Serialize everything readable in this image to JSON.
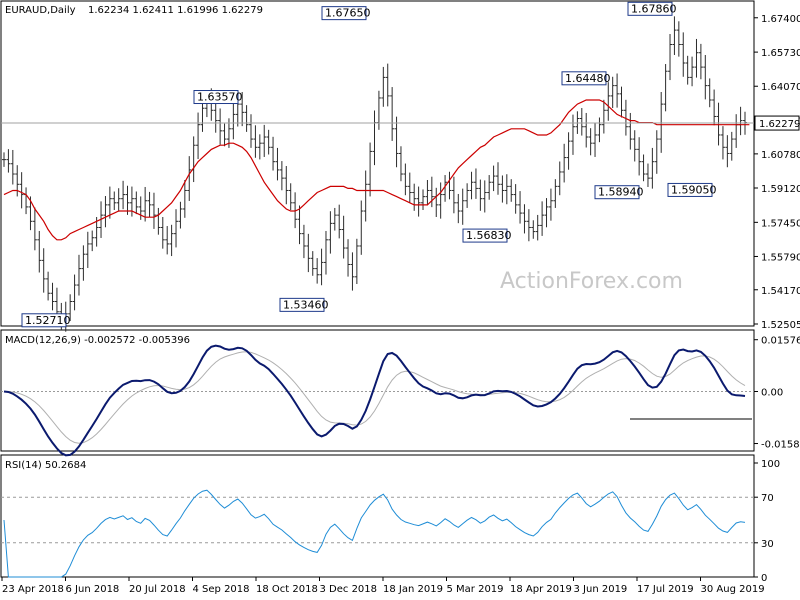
{
  "header": {
    "symbol": "EURAUD,Daily",
    "ohlc": "1.62234 1.62411 1.61996 1.62279"
  },
  "watermark": "ActionForex.com",
  "chart_data": [
    {
      "type": "bar",
      "panel": "price",
      "y_ticks": [
        "1.67400",
        "1.65730",
        "1.64070",
        "1.62400",
        "1.60780",
        "1.59120",
        "1.57450",
        "1.55790",
        "1.54170",
        "1.52505"
      ],
      "ylim": [
        1.52505,
        1.6807
      ],
      "current_price": "1.62279",
      "annotations": [
        {
          "text": "1.52710",
          "value": 1.5271,
          "box_below": true
        },
        {
          "text": "1.63570",
          "value": 1.6357,
          "box_below": false
        },
        {
          "text": "1.53460",
          "value": 1.5346,
          "box_below": true
        },
        {
          "text": "1.67650",
          "value": 1.6765,
          "box_below": false
        },
        {
          "text": "1.56830",
          "value": 1.5683,
          "box_below": true
        },
        {
          "text": "1.64480",
          "value": 1.6448,
          "box_below": false
        },
        {
          "text": "1.58940",
          "value": 1.5894,
          "box_below": true
        },
        {
          "text": "1.67860",
          "value": 1.6786,
          "box_below": false
        },
        {
          "text": "1.59050",
          "value": 1.5905,
          "box_below": true
        }
      ],
      "closes": [
        1.605,
        1.603,
        1.598,
        1.593,
        1.588,
        1.582,
        1.575,
        1.566,
        1.556,
        1.547,
        1.54,
        1.536,
        1.531,
        1.528,
        1.53,
        1.536,
        1.544,
        1.552,
        1.559,
        1.564,
        1.567,
        1.572,
        1.578,
        1.583,
        1.586,
        1.584,
        1.586,
        1.588,
        1.584,
        1.586,
        1.582,
        1.58,
        1.585,
        1.583,
        1.578,
        1.572,
        1.566,
        1.564,
        1.569,
        1.575,
        1.581,
        1.59,
        1.6,
        1.612,
        1.622,
        1.63,
        1.633,
        1.629,
        1.624,
        1.619,
        1.615,
        1.62,
        1.627,
        1.632,
        1.628,
        1.622,
        1.615,
        1.611,
        1.613,
        1.616,
        1.611,
        1.604,
        1.6,
        1.596,
        1.59,
        1.584,
        1.576,
        1.569,
        1.563,
        1.557,
        1.552,
        1.549,
        1.555,
        1.566,
        1.574,
        1.578,
        1.571,
        1.562,
        1.554,
        1.548,
        1.563,
        1.58,
        1.593,
        1.609,
        1.623,
        1.635,
        1.645,
        1.636,
        1.62,
        1.608,
        1.598,
        1.592,
        1.589,
        1.586,
        1.584,
        1.587,
        1.59,
        1.587,
        1.583,
        1.588,
        1.594,
        1.59,
        1.584,
        1.58,
        1.585,
        1.59,
        1.594,
        1.591,
        1.586,
        1.589,
        1.594,
        1.597,
        1.593,
        1.59,
        1.592,
        1.588,
        1.583,
        1.579,
        1.575,
        1.572,
        1.57,
        1.573,
        1.578,
        1.582,
        1.585,
        1.592,
        1.599,
        1.606,
        1.614,
        1.621,
        1.625,
        1.621,
        1.616,
        1.613,
        1.617,
        1.622,
        1.629,
        1.636,
        1.641,
        1.637,
        1.629,
        1.621,
        1.615,
        1.61,
        1.604,
        1.598,
        1.596,
        1.604,
        1.615,
        1.632,
        1.648,
        1.661,
        1.668,
        1.661,
        1.652,
        1.645,
        1.65,
        1.657,
        1.65,
        1.641,
        1.634,
        1.626,
        1.617,
        1.611,
        1.608,
        1.615,
        1.622,
        1.624,
        1.623
      ],
      "ma": [
        1.588,
        1.589,
        1.59,
        1.59,
        1.589,
        1.588,
        1.585,
        1.581,
        1.578,
        1.575,
        1.571,
        1.568,
        1.566,
        1.566,
        1.567,
        1.569,
        1.57,
        1.571,
        1.572,
        1.573,
        1.574,
        1.575,
        1.576,
        1.577,
        1.578,
        1.579,
        1.58,
        1.58,
        1.58,
        1.58,
        1.579,
        1.578,
        1.577,
        1.577,
        1.577,
        1.578,
        1.58,
        1.582,
        1.584,
        1.587,
        1.59,
        1.594,
        1.598,
        1.601,
        1.604,
        1.606,
        1.608,
        1.61,
        1.611,
        1.612,
        1.612,
        1.613,
        1.613,
        1.612,
        1.611,
        1.609,
        1.606,
        1.602,
        1.598,
        1.594,
        1.591,
        1.588,
        1.585,
        1.583,
        1.581,
        1.58,
        1.58,
        1.581,
        1.583,
        1.585,
        1.587,
        1.589,
        1.59,
        1.591,
        1.592,
        1.592,
        1.592,
        1.592,
        1.591,
        1.591,
        1.59,
        1.59,
        1.59,
        1.59,
        1.59,
        1.59,
        1.59,
        1.589,
        1.588,
        1.587,
        1.586,
        1.585,
        1.584,
        1.583,
        1.583,
        1.583,
        1.583,
        1.585,
        1.587,
        1.589,
        1.592,
        1.595,
        1.598,
        1.601,
        1.603,
        1.605,
        1.607,
        1.609,
        1.611,
        1.612,
        1.614,
        1.616,
        1.617,
        1.618,
        1.619,
        1.62,
        1.62,
        1.62,
        1.62,
        1.619,
        1.618,
        1.617,
        1.617,
        1.617,
        1.618,
        1.62,
        1.622,
        1.625,
        1.628,
        1.63,
        1.632,
        1.633,
        1.634,
        1.634,
        1.634,
        1.634,
        1.633,
        1.631,
        1.629,
        1.627,
        1.626,
        1.625,
        1.624,
        1.624,
        1.623,
        1.623,
        1.623,
        1.623,
        1.622,
        1.622,
        1.622,
        1.622,
        1.622,
        1.622,
        1.622,
        1.622,
        1.622,
        1.622,
        1.622,
        1.622,
        1.622,
        1.622,
        1.622,
        1.622,
        1.622,
        1.622,
        1.622,
        1.622,
        1.622,
        1.622
      ]
    },
    {
      "type": "line",
      "panel": "macd",
      "title": "MACD(12,26,9) -0.002572 -0.005396",
      "y_ticks": [
        "0.015762",
        "0.00",
        "-0.015834"
      ],
      "ylim": [
        -0.0175,
        0.0175
      ]
    },
    {
      "type": "line",
      "panel": "rsi",
      "title": "RSI(14) 50.2684",
      "y_ticks": [
        "100",
        "70",
        "30",
        "0"
      ],
      "ylim": [
        0,
        100
      ],
      "levels": [
        70,
        30
      ]
    }
  ],
  "x_ticks": [
    "23 Apr 2018",
    "6 Jun 2018",
    "20 Jul 2018",
    "4 Sep 2018",
    "18 Oct 2018",
    "3 Dec 2018",
    "18 Jan 2019",
    "5 Mar 2019",
    "18 Apr 2019",
    "3 Jun 2019",
    "17 Jul 2019",
    "30 Aug 2019"
  ]
}
